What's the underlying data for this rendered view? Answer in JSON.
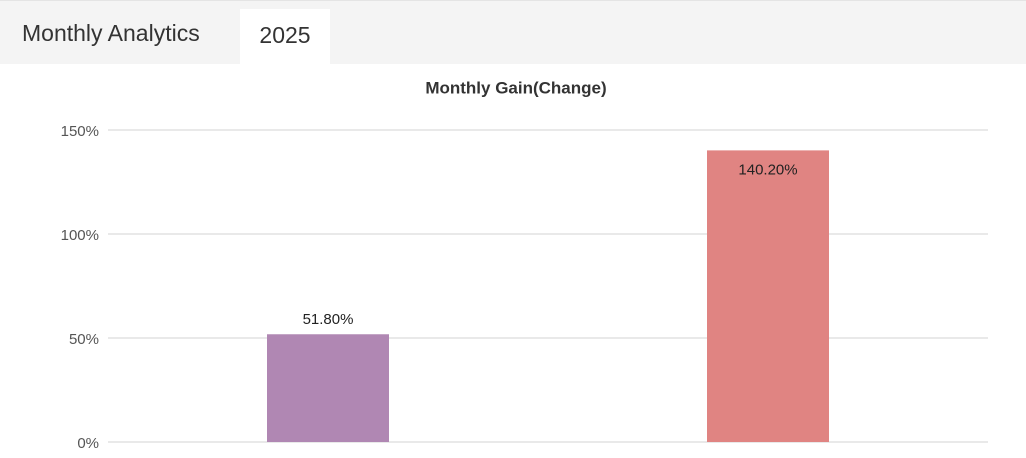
{
  "header": {
    "title": "Monthly Analytics",
    "tabs": [
      "2025"
    ]
  },
  "chart_data": {
    "type": "bar",
    "title": "Monthly Gain(Change)",
    "categories": [
      null,
      null
    ],
    "values": [
      51.8,
      140.2
    ],
    "value_labels": [
      "51.80%",
      "140.20%"
    ],
    "colors": [
      "#b087b3",
      "#e08482"
    ],
    "ylim": [
      0,
      150
    ],
    "yticks": [
      {
        "value": 0,
        "label": "0%"
      },
      {
        "value": 50,
        "label": "50%"
      },
      {
        "value": 100,
        "label": "100%"
      },
      {
        "value": 150,
        "label": "150%"
      }
    ],
    "grid": true
  }
}
